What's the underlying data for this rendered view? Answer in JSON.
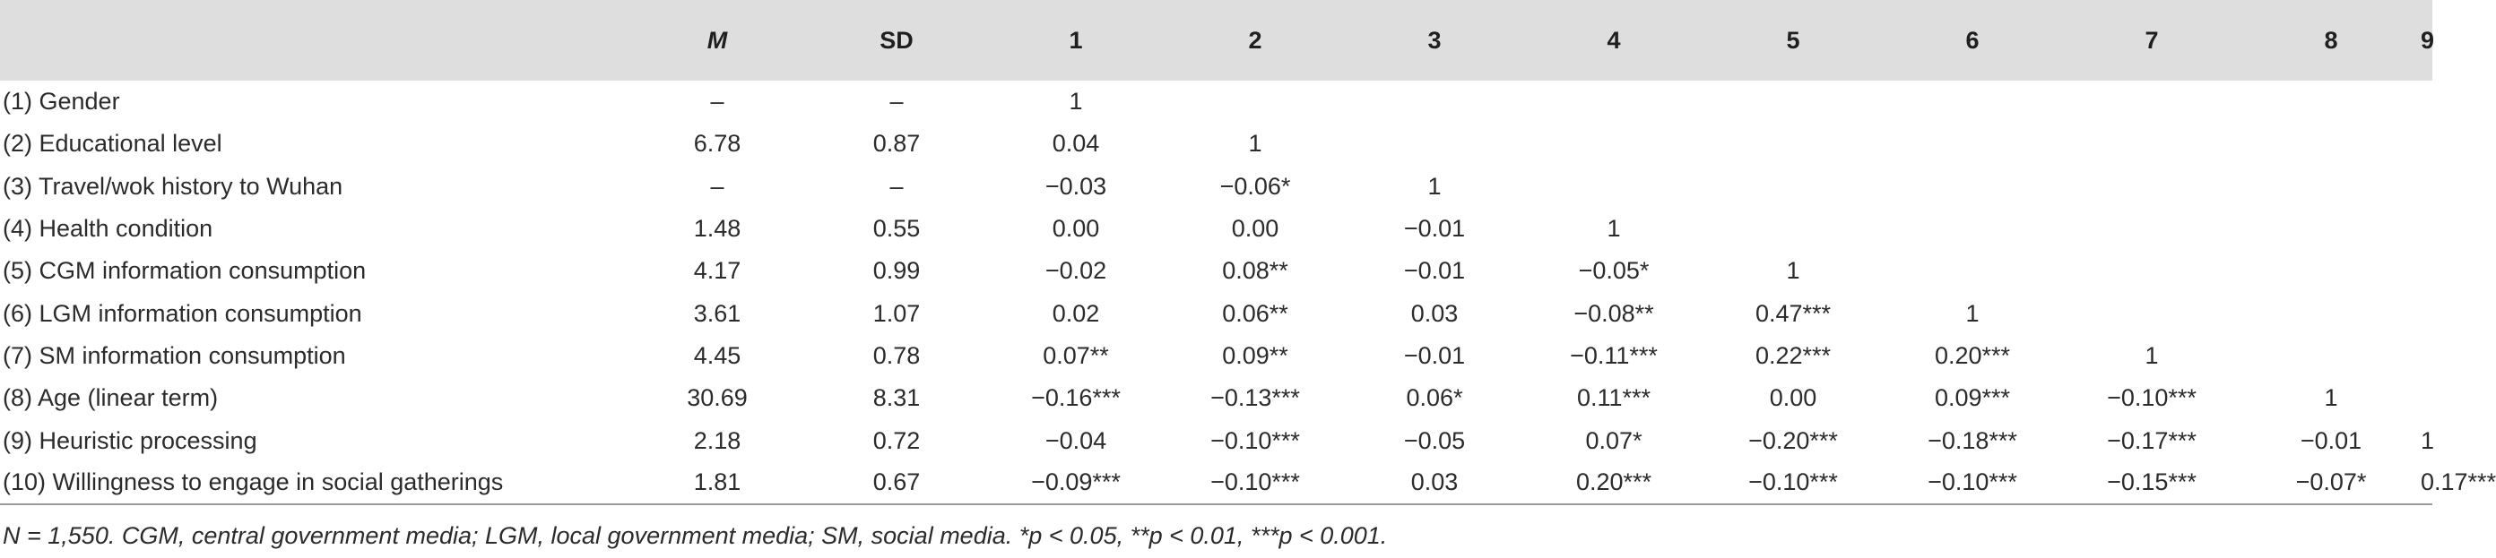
{
  "table": {
    "headers": [
      "",
      "M",
      "SD",
      "1",
      "2",
      "3",
      "4",
      "5",
      "6",
      "7",
      "8",
      "9"
    ],
    "rows": [
      {
        "label": "(1) Gender",
        "cells": [
          "–",
          "–",
          "1",
          "",
          "",
          "",
          "",
          "",
          "",
          "",
          ""
        ]
      },
      {
        "label": "(2) Educational level",
        "cells": [
          "6.78",
          "0.87",
          "0.04",
          "1",
          "",
          "",
          "",
          "",
          "",
          "",
          ""
        ]
      },
      {
        "label": "(3) Travel/wok history to Wuhan",
        "cells": [
          "–",
          "–",
          "−0.03",
          "−0.06*",
          "1",
          "",
          "",
          "",
          "",
          "",
          ""
        ]
      },
      {
        "label": "(4) Health condition",
        "cells": [
          "1.48",
          "0.55",
          "0.00",
          "0.00",
          "−0.01",
          "1",
          "",
          "",
          "",
          "",
          ""
        ]
      },
      {
        "label": "(5) CGM information consumption",
        "cells": [
          "4.17",
          "0.99",
          "−0.02",
          "0.08**",
          "−0.01",
          "−0.05*",
          "1",
          "",
          "",
          "",
          ""
        ]
      },
      {
        "label": "(6) LGM information consumption",
        "cells": [
          "3.61",
          "1.07",
          "0.02",
          "0.06**",
          "0.03",
          "−0.08**",
          "0.47***",
          "1",
          "",
          "",
          ""
        ]
      },
      {
        "label": "(7) SM information consumption",
        "cells": [
          "4.45",
          "0.78",
          "0.07**",
          "0.09**",
          "−0.01",
          "−0.11***",
          "0.22***",
          "0.20***",
          "1",
          "",
          ""
        ]
      },
      {
        "label": "(8) Age (linear term)",
        "cells": [
          "30.69",
          "8.31",
          "−0.16***",
          "−0.13***",
          "0.06*",
          "0.11***",
          "0.00",
          "0.09***",
          "−0.10***",
          "1",
          ""
        ]
      },
      {
        "label": "(9) Heuristic processing",
        "cells": [
          "2.18",
          "0.72",
          "−0.04",
          "−0.10***",
          "−0.05",
          "0.07*",
          "−0.20***",
          "−0.18***",
          "−0.17***",
          "−0.01",
          "1"
        ]
      },
      {
        "label": "(10) Willingness to engage in social gatherings",
        "cells": [
          "1.81",
          "0.67",
          "−0.09***",
          "−0.10***",
          "0.03",
          "0.20***",
          "−0.10***",
          "−0.10***",
          "−0.15***",
          "−0.07*",
          "0.17***"
        ]
      }
    ]
  },
  "footnote": "N = 1,550. CGM, central government media; LGM, local government media; SM, social media. *p < 0.05, **p < 0.01, ***p < 0.001."
}
